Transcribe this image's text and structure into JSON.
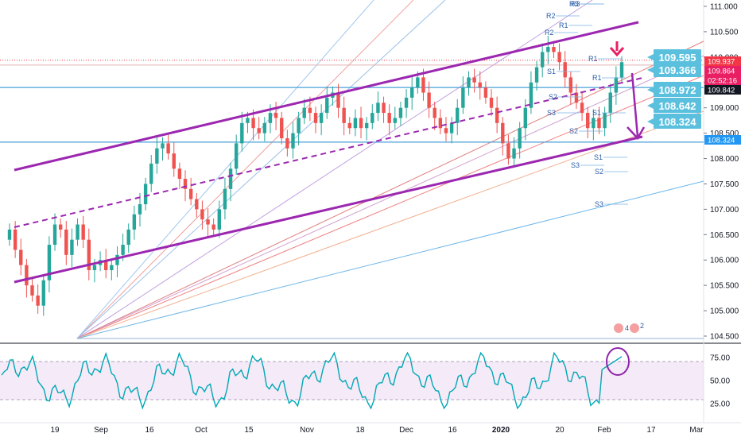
{
  "chart_data": {
    "type": "candlestick",
    "instrument_note": "",
    "price_axis": {
      "ticks": [
        "111.000",
        "110.500",
        "110.000",
        "109.500",
        "109.000",
        "108.500",
        "108.000",
        "107.500",
        "107.000",
        "106.500",
        "106.000",
        "105.500",
        "105.000",
        "104.500"
      ],
      "range": [
        104.45,
        111.1
      ]
    },
    "rsi_axis": {
      "ticks": [
        "75.00",
        "50.00",
        "25.00"
      ],
      "range": [
        15,
        85
      ],
      "levels": [
        70,
        30
      ]
    },
    "time_axis": {
      "ticks": [
        "19",
        "Sep",
        "16",
        "Oct",
        "15",
        "Nov",
        "18",
        "Dec",
        "16",
        "2020",
        "20",
        "Feb",
        "17",
        "Mar"
      ]
    },
    "price_tags": [
      {
        "label": "109.937",
        "color": "#f23645"
      },
      {
        "label": "109.864",
        "color": "#e91e63"
      },
      {
        "label": "02:52:16",
        "color": "#e91e63"
      },
      {
        "label": "109.842",
        "color": "#131722"
      },
      {
        "label": "108.324",
        "color": "#2196f3"
      }
    ],
    "callouts": [
      {
        "label": "109.595"
      },
      {
        "label": "109.366"
      },
      {
        "label": "108.972"
      },
      {
        "label": "108.642"
      },
      {
        "label": "108.324"
      }
    ],
    "pivot_labels": [
      "R3",
      "R2",
      "R1",
      "R2",
      "R1",
      "S1",
      "R1",
      "S2",
      "S3",
      "S1",
      "S2",
      "S1",
      "S3",
      "S2",
      "S3",
      "R3"
    ],
    "event_markers": [
      "4",
      "2"
    ],
    "candles_close": [
      106.6,
      106.2,
      105.9,
      105.5,
      105.3,
      105.1,
      105.6,
      106.3,
      106.7,
      106.6,
      106.1,
      106.4,
      106.7,
      106.4,
      105.8,
      105.9,
      106.0,
      105.8,
      105.9,
      106.1,
      106.3,
      106.6,
      106.9,
      107.1,
      107.5,
      107.9,
      108.2,
      108.3,
      108.1,
      107.8,
      107.6,
      107.4,
      107.2,
      107.0,
      106.8,
      106.7,
      106.6,
      107.0,
      107.4,
      107.8,
      108.3,
      108.7,
      108.8,
      108.6,
      108.5,
      108.7,
      108.9,
      108.8,
      108.4,
      108.2,
      108.5,
      108.8,
      109.0,
      108.9,
      108.7,
      108.9,
      109.2,
      109.3,
      109.0,
      108.7,
      108.6,
      108.8,
      108.6,
      108.7,
      108.9,
      109.1,
      108.9,
      108.7,
      108.8,
      109.0,
      109.2,
      109.4,
      109.6,
      109.3,
      109.0,
      108.8,
      108.6,
      108.5,
      108.7,
      109.0,
      109.4,
      109.6,
      109.5,
      109.4,
      109.2,
      109.0,
      108.7,
      108.3,
      108.0,
      108.2,
      108.6,
      109.0,
      109.5,
      109.8,
      110.1,
      110.2,
      110.1,
      109.9,
      109.6,
      109.3,
      109.1,
      108.9,
      108.6,
      108.8,
      108.6,
      108.9,
      109.3,
      109.6,
      109.9
    ]
  }
}
